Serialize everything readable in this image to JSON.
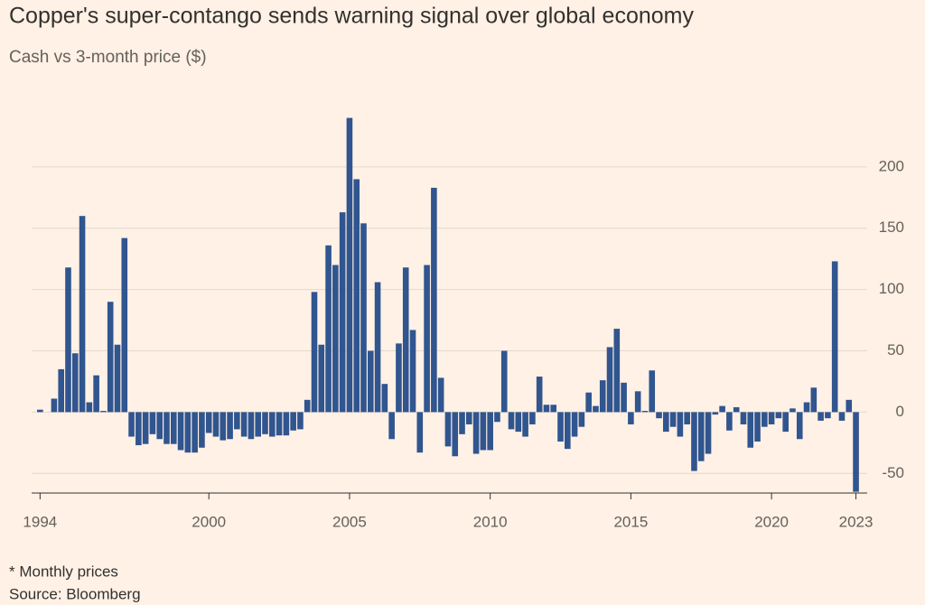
{
  "chart_data": {
    "type": "bar",
    "title": "Copper's super-contango sends warning signal over global economy",
    "subtitle": "Cash vs 3-month price ($)",
    "notes": [
      "* Monthly prices",
      "Source: Bloomberg"
    ],
    "color": "#30558f",
    "grid": true,
    "x": [
      1994,
      1994.25,
      1994.5,
      1994.75,
      1995,
      1995.25,
      1995.5,
      1995.75,
      1996,
      1996.25,
      1996.5,
      1996.75,
      1997,
      1997.25,
      1997.5,
      1997.75,
      1998,
      1998.25,
      1998.5,
      1998.75,
      1999,
      1999.25,
      1999.5,
      1999.75,
      2000,
      2000.25,
      2000.5,
      2000.75,
      2001,
      2001.25,
      2001.5,
      2001.75,
      2002,
      2002.25,
      2002.5,
      2002.75,
      2003,
      2003.25,
      2003.5,
      2003.75,
      2004,
      2004.25,
      2004.5,
      2004.75,
      2005,
      2005.25,
      2005.5,
      2005.75,
      2006,
      2006.25,
      2006.5,
      2006.75,
      2007,
      2007.25,
      2007.5,
      2007.75,
      2008,
      2008.25,
      2008.5,
      2008.75,
      2009,
      2009.25,
      2009.5,
      2009.75,
      2010,
      2010.25,
      2010.5,
      2010.75,
      2011,
      2011.25,
      2011.5,
      2011.75,
      2012,
      2012.25,
      2012.5,
      2012.75,
      2013,
      2013.25,
      2013.5,
      2013.75,
      2014,
      2014.25,
      2014.5,
      2014.75,
      2015,
      2015.25,
      2015.5,
      2015.75,
      2016,
      2016.25,
      2016.5,
      2016.75,
      2017,
      2017.25,
      2017.5,
      2017.75,
      2018,
      2018.25,
      2018.5,
      2018.75,
      2019,
      2019.25,
      2019.5,
      2019.75,
      2020,
      2020.25,
      2020.5,
      2020.75,
      2021,
      2021.25,
      2021.5,
      2021.75,
      2022,
      2022.25,
      2022.5,
      2022.75,
      2023
    ],
    "values": [
      2,
      0,
      11,
      35,
      118,
      48,
      160,
      8,
      30,
      1,
      90,
      55,
      142,
      -20,
      -27,
      -26,
      -18,
      -22,
      -26,
      -26,
      -31,
      -33,
      -33,
      -29,
      -17,
      -20,
      -23,
      -22,
      -14,
      -20,
      -22,
      -20,
      -18,
      -20,
      -19,
      -19,
      -15,
      -14,
      10,
      98,
      55,
      136,
      120,
      163,
      240,
      190,
      154,
      50,
      106,
      23,
      -22,
      56,
      118,
      67,
      -33,
      120,
      183,
      28,
      -28,
      -36,
      -18,
      -10,
      -34,
      -31,
      -31,
      -8,
      50,
      -14,
      -16,
      -20,
      -10,
      29,
      6,
      6,
      -24,
      -30,
      -20,
      -12,
      16,
      5,
      26,
      53,
      68,
      24,
      -10,
      17,
      1,
      34,
      -5,
      -16,
      -12,
      -20,
      -10,
      -48,
      -40,
      -34,
      -2,
      5,
      -15,
      4,
      -10,
      -29,
      -24,
      -12,
      -10,
      -5,
      -16,
      3,
      -22,
      8,
      20,
      -7,
      -5,
      123,
      -7,
      10,
      -65
    ],
    "xlim": [
      1993.7,
      2023.4
    ],
    "xticks": [
      1994,
      2000,
      2005,
      2010,
      2015,
      2020,
      2023
    ],
    "ylim": [
      -66,
      250
    ],
    "yticks": [
      -50,
      0,
      50,
      100,
      150,
      200
    ]
  }
}
